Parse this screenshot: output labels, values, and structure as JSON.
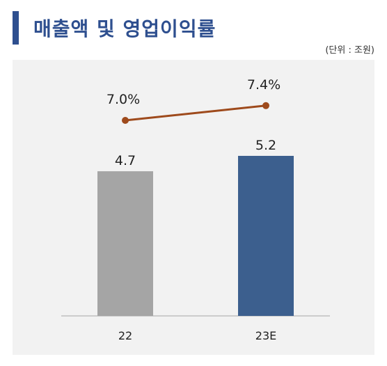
{
  "title": "매출액 및 영업이익률",
  "unit_label": "(단위 : 조원)",
  "chart_data": {
    "type": "bar",
    "categories": [
      "22",
      "23E"
    ],
    "series": [
      {
        "type": "bar",
        "values": [
          4.7,
          5.2
        ],
        "value_labels": [
          "4.7",
          "5.2"
        ],
        "colors": [
          "#a5a5a5",
          "#3c5f8e"
        ]
      },
      {
        "type": "line",
        "values": [
          7.0,
          7.4
        ],
        "value_labels": [
          "7.0%",
          "7.4%"
        ],
        "color": "#9e4a1c"
      }
    ],
    "grid": false,
    "legend": "none"
  }
}
